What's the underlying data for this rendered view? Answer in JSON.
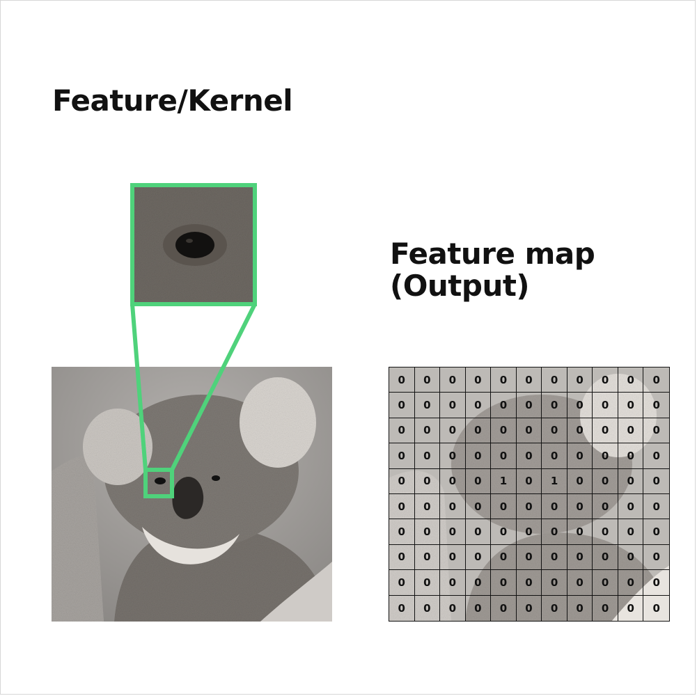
{
  "kernel_title": "Feature/Kernel",
  "map_title": [
    "Feature map",
    "(Output)"
  ],
  "colors": {
    "highlight": "#4fd27b",
    "text": "#111111",
    "photo_bg": "#9a9794"
  },
  "icons": {
    "photo": "koala-photo",
    "zoom": "koala-eye-closeup"
  },
  "feature_map": [
    [
      "0",
      "0",
      "0",
      "0",
      "0",
      "0",
      "0",
      "0",
      "0",
      "0",
      "0"
    ],
    [
      "0",
      "0",
      "0",
      "0",
      "0",
      "0",
      "0",
      "0",
      "0",
      "0",
      "0"
    ],
    [
      "0",
      "0",
      "0",
      "0",
      "0",
      "0",
      "0",
      "0",
      "0",
      "0",
      "0"
    ],
    [
      "0",
      "0",
      "0",
      "0",
      "0",
      "0",
      "0",
      "0",
      "0",
      "0",
      "0"
    ],
    [
      "0",
      "0",
      "0",
      "0",
      "1",
      "0",
      "1",
      "0",
      "0",
      "0",
      "0"
    ],
    [
      "0",
      "0",
      "0",
      "0",
      "0",
      "0",
      "0",
      "0",
      "0",
      "0",
      "0"
    ],
    [
      "0",
      "0",
      "0",
      "0",
      "0",
      "0",
      "0",
      "0",
      "0",
      "0",
      "0"
    ],
    [
      "0",
      "0",
      "0",
      "0",
      "0",
      "0",
      "0",
      "0",
      "0",
      "0",
      "0"
    ],
    [
      "0",
      "0",
      "0",
      "0",
      "0",
      "0",
      "0",
      "0",
      "0",
      "0",
      "0"
    ],
    [
      "0",
      "0",
      "0",
      "0",
      "0",
      "0",
      "0",
      "0",
      "0",
      "0",
      "0"
    ]
  ]
}
